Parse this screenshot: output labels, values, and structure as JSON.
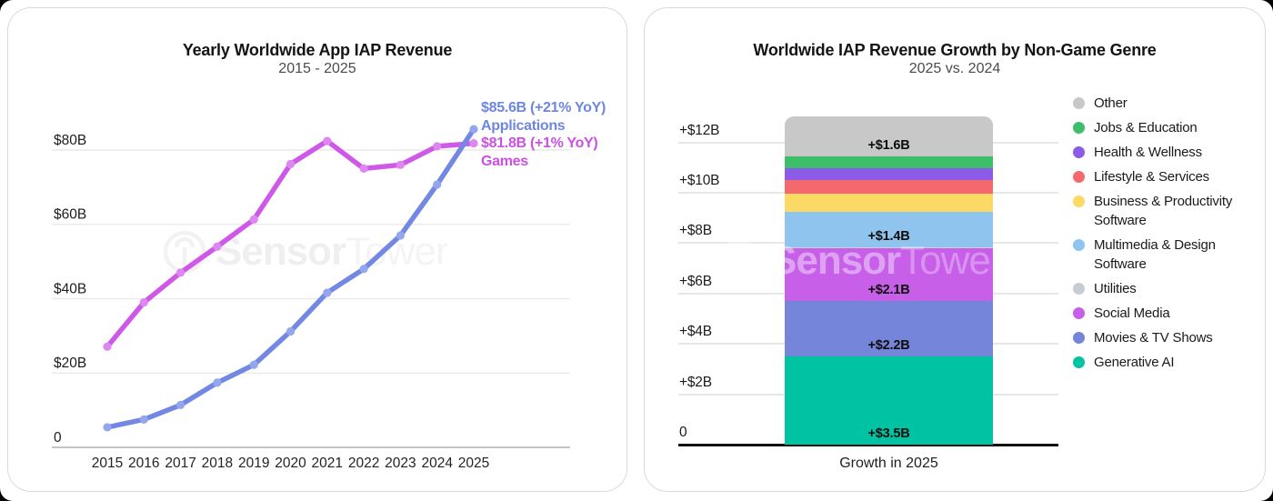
{
  "watermark": {
    "part1": "Sensor",
    "part2": "Tower"
  },
  "left_card": {
    "title": "Yearly Worldwide App IAP Revenue",
    "subtitle": "2015 - 2025",
    "annotations": {
      "applications_value": "$85.6B (+21% YoY)",
      "applications_name": "Applications",
      "games_value": "$81.8B (+1% YoY)",
      "games_name": "Games"
    },
    "colors": {
      "applications": "#7288e3",
      "games": "#d058e8"
    }
  },
  "right_card": {
    "title": "Worldwide IAP Revenue Growth by Non-Game Genre",
    "subtitle": "2025 vs. 2024",
    "xlabel": "Growth in 2025"
  },
  "chart_data": [
    {
      "type": "line",
      "title": "Yearly Worldwide App IAP Revenue",
      "subtitle": "2015 - 2025",
      "x": [
        2015,
        2016,
        2017,
        2018,
        2019,
        2020,
        2021,
        2022,
        2023,
        2024,
        2025
      ],
      "series": [
        {
          "name": "Applications",
          "color": "#7288e3",
          "marker_color": "#93a6ee",
          "values": [
            5.4,
            7.5,
            11.4,
            17.4,
            22.2,
            31.2,
            41.6,
            48.0,
            57.0,
            70.7,
            85.6
          ],
          "end_label": "$85.6B (+21% YoY)"
        },
        {
          "name": "Games",
          "color": "#d058e8",
          "marker_color": "#de86f1",
          "values": [
            27.1,
            39.0,
            47.0,
            54.0,
            61.3,
            76.2,
            82.4,
            75.0,
            76.0,
            81.0,
            81.8
          ],
          "end_label": "$81.8B (+1% YoY)"
        }
      ],
      "yticks": [
        {
          "v": 0,
          "label": "0"
        },
        {
          "v": 20,
          "label": "$20B"
        },
        {
          "v": 40,
          "label": "$40B"
        },
        {
          "v": 60,
          "label": "$60B"
        },
        {
          "v": 80,
          "label": "$80B"
        }
      ],
      "ylim": [
        0,
        95
      ],
      "grid": true,
      "legend_position": "line-end annotations"
    },
    {
      "type": "bar",
      "stacked": true,
      "title": "Worldwide IAP Revenue Growth by Non-Game Genre",
      "subtitle": "2025 vs. 2024",
      "categories": [
        "Growth in 2025"
      ],
      "xlabel": "Growth in 2025",
      "ylabel": "",
      "ylim": [
        0,
        13.3
      ],
      "grid": true,
      "yticks": [
        {
          "v": 0,
          "label": "0"
        },
        {
          "v": 2,
          "label": "+$2B"
        },
        {
          "v": 4,
          "label": "+$4B"
        },
        {
          "v": 6,
          "label": "+$6B"
        },
        {
          "v": 8,
          "label": "+$8B"
        },
        {
          "v": 10,
          "label": "+$10B"
        },
        {
          "v": 12,
          "label": "+$12B"
        }
      ],
      "segments_bottom_to_top": [
        {
          "name": "Generative AI",
          "value": 3.5,
          "label": "+$3.5B",
          "color": "#00c3a4"
        },
        {
          "name": "Movies & TV Shows",
          "value": 2.2,
          "label": "+$2.2B",
          "color": "#7585da"
        },
        {
          "name": "Social Media",
          "value": 2.1,
          "label": "+$2.1B",
          "color": "#c75fe8"
        },
        {
          "name": "Utilities",
          "value": 0.05,
          "label": null,
          "color": "#ccd2d8"
        },
        {
          "name": "Multimedia & Design Software",
          "value": 1.4,
          "label": "+$1.4B",
          "color": "#8ec4ee"
        },
        {
          "name": "Business & Productivity Software",
          "value": 0.72,
          "label": null,
          "color": "#fbd964"
        },
        {
          "name": "Lifestyle & Services",
          "value": 0.54,
          "label": null,
          "color": "#f4696e"
        },
        {
          "name": "Health & Wellness",
          "value": 0.46,
          "label": null,
          "color": "#8c5ce8"
        },
        {
          "name": "Jobs & Education",
          "value": 0.46,
          "label": null,
          "color": "#3dbe69"
        },
        {
          "name": "Other",
          "value": 1.6,
          "label": "+$1.6B",
          "color": "#c8c8c8"
        }
      ],
      "legend_position": "right",
      "legend_top_to_bottom": [
        {
          "name": "Other",
          "color": "#c8c8c8"
        },
        {
          "name": "Jobs & Education",
          "color": "#3dbe69"
        },
        {
          "name": "Health & Wellness",
          "color": "#8c5ce8"
        },
        {
          "name": "Lifestyle & Services",
          "color": "#f4696e"
        },
        {
          "name": "Business & Productivity Software",
          "color": "#fbd964"
        },
        {
          "name": "Multimedia & Design Software",
          "color": "#8ec4ee"
        },
        {
          "name": "Utilities",
          "color": "#c6ccd3"
        },
        {
          "name": "Social Media",
          "color": "#c75fe8"
        },
        {
          "name": "Movies & TV Shows",
          "color": "#7585da"
        },
        {
          "name": "Generative AI",
          "color": "#00c3a4"
        }
      ]
    }
  ]
}
